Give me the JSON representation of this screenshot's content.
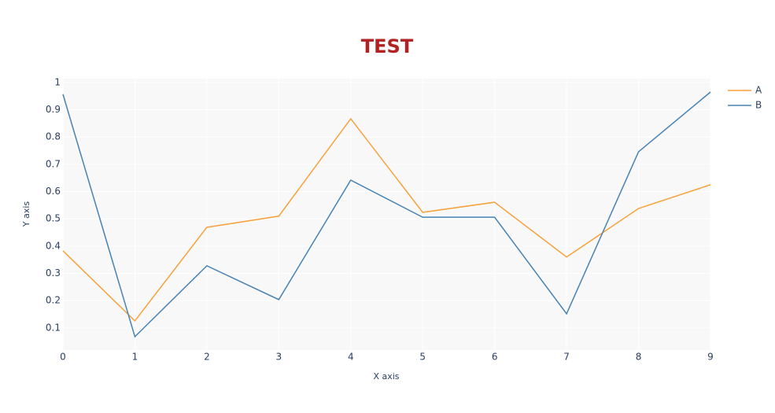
{
  "chart_data": {
    "type": "line",
    "title": "TEST",
    "x_label": "X axis",
    "y_label": "Y axis",
    "x": [
      0,
      1,
      2,
      3,
      4,
      5,
      6,
      7,
      8,
      9
    ],
    "series": [
      {
        "name": "A",
        "color": "#f7a03c",
        "values": [
          0.383,
          0.126,
          0.469,
          0.51,
          0.867,
          0.524,
          0.561,
          0.36,
          0.538,
          0.625
        ]
      },
      {
        "name": "B",
        "color": "#4682b4",
        "values": [
          0.957,
          0.068,
          0.328,
          0.204,
          0.642,
          0.506,
          0.506,
          0.152,
          0.746,
          0.965
        ]
      }
    ],
    "xlim": [
      0,
      9
    ],
    "xticks": [
      0,
      1,
      2,
      3,
      4,
      5,
      6,
      7,
      8,
      9
    ],
    "ylim": [
      0.019,
      1.014
    ],
    "yticks": [
      0.1,
      0.2,
      0.3,
      0.4,
      0.5,
      0.6,
      0.7,
      0.8,
      0.9,
      1
    ],
    "grid": true,
    "legend": "right",
    "title_color": "#b22222",
    "plot_bg": "#f8f8f8"
  }
}
